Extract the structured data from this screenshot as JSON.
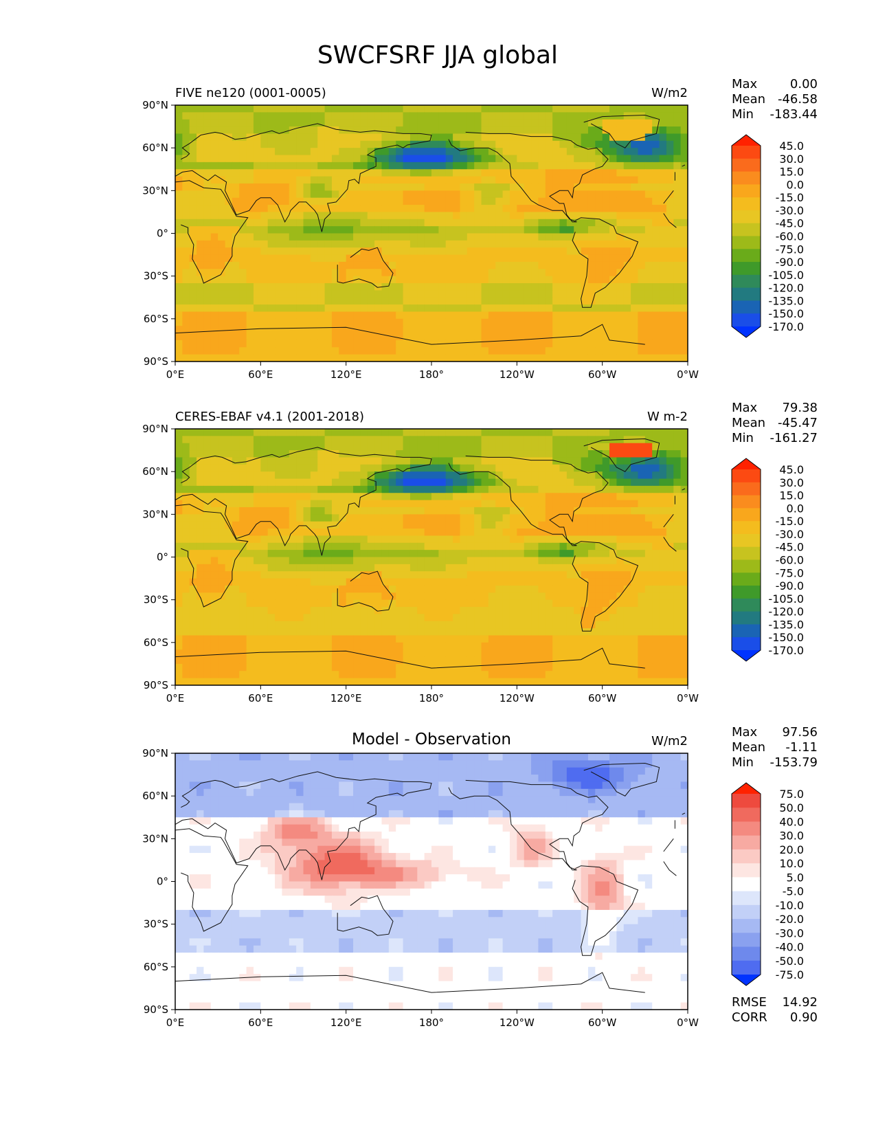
{
  "figure": {
    "title": "SWCFSRF JJA global"
  },
  "chart_data": [
    {
      "type": "heatmap",
      "name": "model",
      "title_left": "FIVE ne120 (0001-0005)",
      "title_center": "",
      "title_right": "W/m2",
      "x_ticks": [
        "0°E",
        "60°E",
        "120°E",
        "180°",
        "120°W",
        "60°W",
        "0°W"
      ],
      "y_ticks": [
        "90°N",
        "60°N",
        "30°N",
        "0°",
        "30°S",
        "60°S",
        "90°S"
      ],
      "xlim": [
        0,
        360
      ],
      "ylim": [
        -90,
        90
      ],
      "stats": {
        "max_label": "Max",
        "max": "0.00",
        "mean_label": "Mean",
        "mean": "-46.58",
        "min_label": "Min",
        "min": "-183.44"
      },
      "colorbar": {
        "levels": [
          "45.0",
          "30.0",
          "15.0",
          "0.0",
          "-15.0",
          "-30.0",
          "-45.0",
          "-60.0",
          "-75.0",
          "-90.0",
          "-105.0",
          "-120.0",
          "-135.0",
          "-150.0",
          "-170.0"
        ],
        "colors": [
          "#ff2200",
          "#fc4a12",
          "#fa6b1c",
          "#fa8c1e",
          "#f9a71c",
          "#f4bc1e",
          "#e8c623",
          "#c7c31f",
          "#9dba19",
          "#6aab1a",
          "#3f9a2a",
          "#2f8a5a",
          "#227a80",
          "#1a64b4",
          "#1a4ee8",
          "#0033ff"
        ]
      }
    },
    {
      "type": "heatmap",
      "name": "observation",
      "title_left": "CERES-EBAF v4.1 (2001-2018)",
      "title_center": "",
      "title_right": "W m-2",
      "x_ticks": [
        "0°E",
        "60°E",
        "120°E",
        "180°",
        "120°W",
        "60°W",
        "0°W"
      ],
      "y_ticks": [
        "90°N",
        "60°N",
        "30°N",
        "0°",
        "30°S",
        "60°S",
        "90°S"
      ],
      "xlim": [
        0,
        360
      ],
      "ylim": [
        -90,
        90
      ],
      "stats": {
        "max_label": "Max",
        "max": "79.38",
        "mean_label": "Mean",
        "mean": "-45.47",
        "min_label": "Min",
        "min": "-161.27"
      },
      "colorbar": {
        "levels": [
          "45.0",
          "30.0",
          "15.0",
          "0.0",
          "-15.0",
          "-30.0",
          "-45.0",
          "-60.0",
          "-75.0",
          "-90.0",
          "-105.0",
          "-120.0",
          "-135.0",
          "-150.0",
          "-170.0"
        ],
        "colors": [
          "#ff2200",
          "#fc4a12",
          "#fa6b1c",
          "#fa8c1e",
          "#f9a71c",
          "#f4bc1e",
          "#e8c623",
          "#c7c31f",
          "#9dba19",
          "#6aab1a",
          "#3f9a2a",
          "#2f8a5a",
          "#227a80",
          "#1a64b4",
          "#1a4ee8",
          "#0033ff"
        ]
      }
    },
    {
      "type": "heatmap",
      "name": "difference",
      "title_left": "",
      "title_center": "Model - Observation",
      "title_right": "W/m2",
      "x_ticks": [
        "0°E",
        "60°E",
        "120°E",
        "180°",
        "120°W",
        "60°W",
        "0°W"
      ],
      "y_ticks": [
        "90°N",
        "60°N",
        "30°N",
        "0°",
        "30°S",
        "60°S",
        "90°S"
      ],
      "xlim": [
        0,
        360
      ],
      "ylim": [
        -90,
        90
      ],
      "stats": {
        "max_label": "Max",
        "max": "97.56",
        "mean_label": "Mean",
        "mean": "-1.11",
        "min_label": "Min",
        "min": "-153.79"
      },
      "extra_stats": {
        "rmse_label": "RMSE",
        "rmse": "14.92",
        "corr_label": "CORR",
        "corr": "0.90"
      },
      "colorbar": {
        "levels": [
          "75.0",
          "50.0",
          "40.0",
          "30.0",
          "20.0",
          "10.0",
          "5.0",
          "-5.0",
          "-10.0",
          "-20.0",
          "-30.0",
          "-40.0",
          "-50.0",
          "-75.0"
        ],
        "colors": [
          "#ff2200",
          "#ee4a3e",
          "#f06a5e",
          "#f48a80",
          "#f7aaa2",
          "#fbcac4",
          "#fde6e2",
          "#ffffff",
          "#dde6fb",
          "#c2d0f7",
          "#a6b9f3",
          "#8aa1ef",
          "#6e89ec",
          "#4f6cf0",
          "#0033ff"
        ]
      }
    }
  ]
}
